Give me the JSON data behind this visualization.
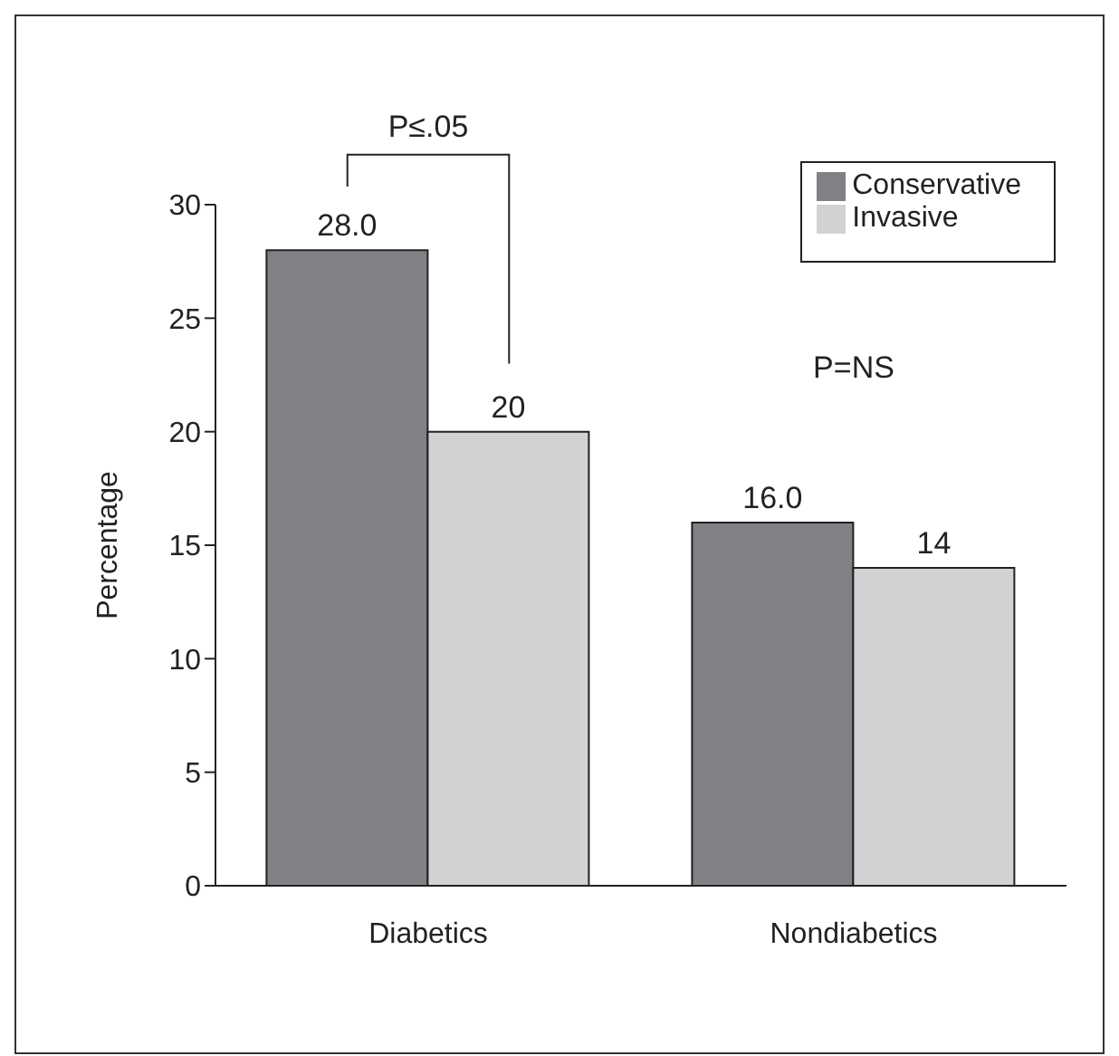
{
  "chart_data": {
    "type": "bar",
    "ylabel": "Percentage",
    "categories": [
      "Diabetics",
      "Nondiabetics"
    ],
    "series": [
      {
        "name": "Conservative",
        "color": "#808184",
        "values": [
          28,
          16
        ],
        "value_labels": [
          "28.0",
          "16.0"
        ]
      },
      {
        "name": "Invasive",
        "color": "#d1d2d4",
        "values": [
          20,
          14
        ],
        "value_labels": [
          "20",
          "14"
        ]
      }
    ],
    "ylim": [
      0,
      30
    ],
    "yticks": [
      0,
      5,
      10,
      15,
      20,
      25,
      30
    ],
    "legend": "top right",
    "annotations": [
      "P≤.05",
      "P=NS"
    ]
  }
}
